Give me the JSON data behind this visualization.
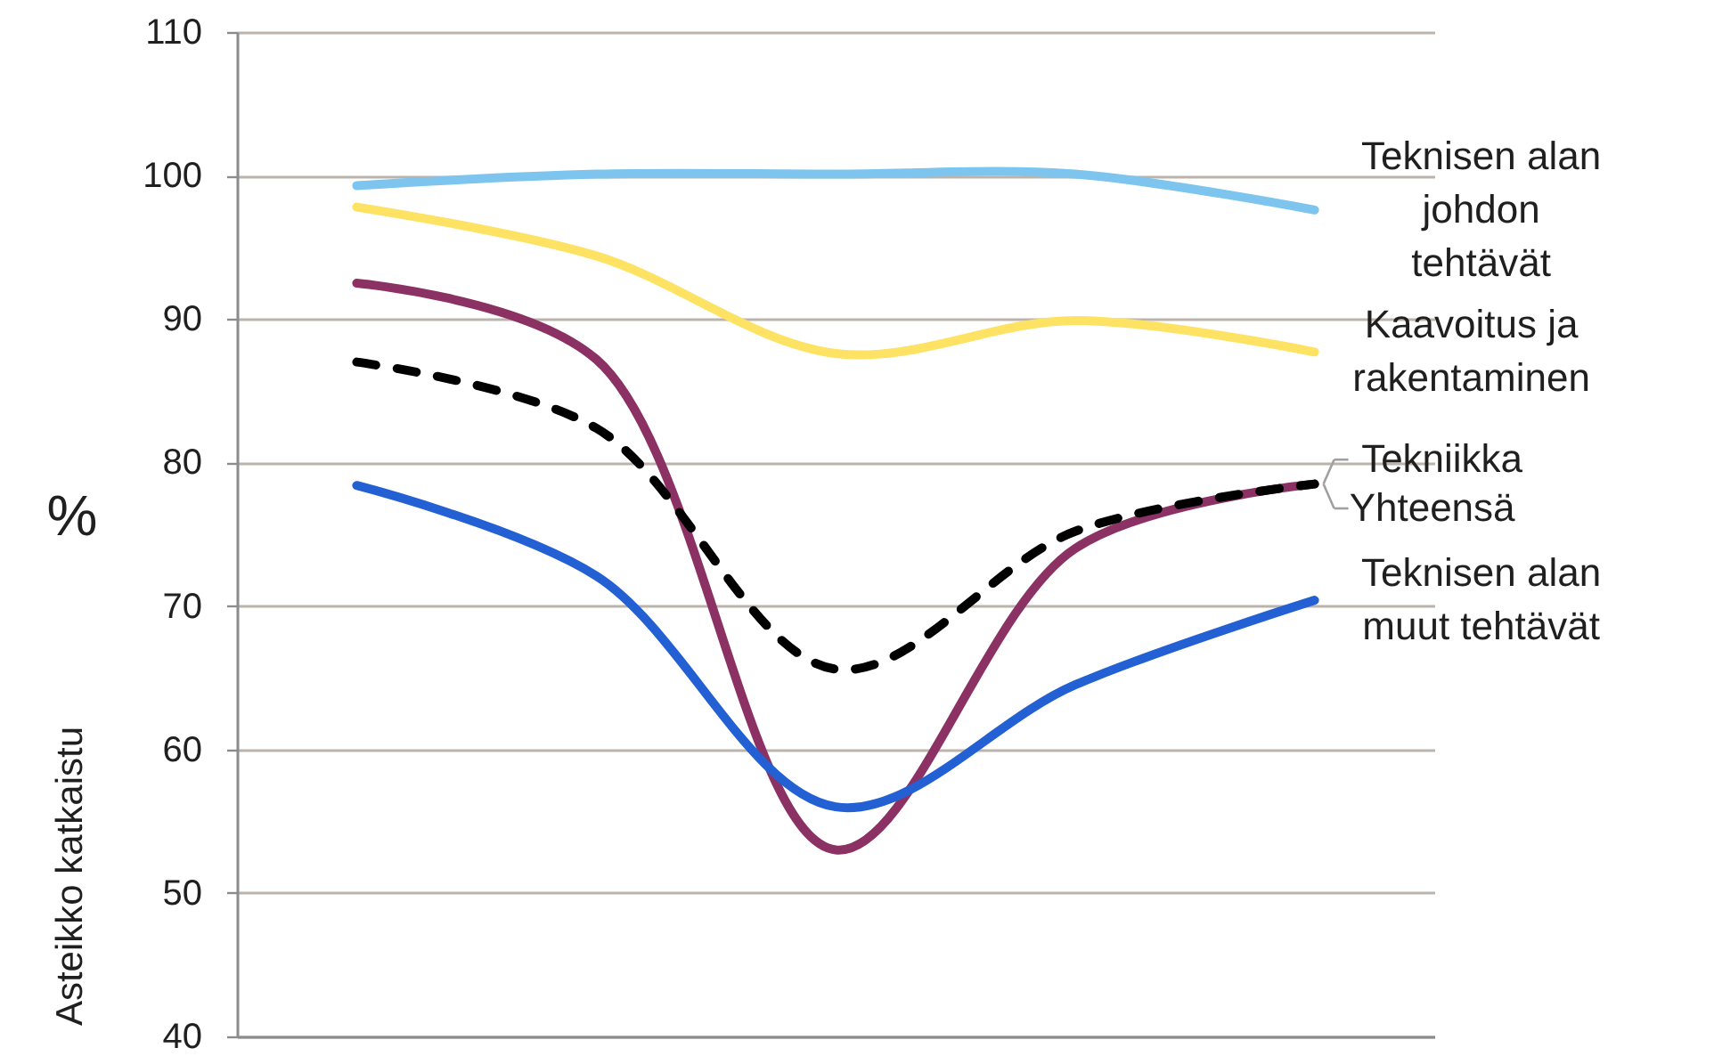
{
  "chart_data": {
    "type": "line",
    "ylabel": "%",
    "annotations": [
      "Asteikko katkaistu"
    ],
    "categories": [
      null,
      null,
      null,
      null,
      null
    ],
    "series": [
      {
        "name": "Teknisen alan johdon tehtävät",
        "color": "#7dc5ee",
        "values": [
          99.3,
          100.1,
          100.1,
          100.1,
          97.6
        ]
      },
      {
        "name": "Kaavoitus ja rakentaminen",
        "color": "#fde263",
        "values": [
          97.8,
          94.4,
          87.6,
          89.9,
          87.7
        ]
      },
      {
        "name": "Tekniikka",
        "color": "#8b3163",
        "values": [
          92.5,
          87.2,
          53.0,
          74.0,
          78.5
        ]
      },
      {
        "name": "Yhteensä",
        "color": "#000000",
        "line_style": "dashed",
        "values": [
          87.0,
          82.4,
          65.6,
          75.2,
          78.5
        ]
      },
      {
        "name": "Teknisen alan muut tehtävät",
        "color": "#2360d3",
        "values": [
          78.4,
          72.1,
          56.0,
          64.5,
          70.4
        ]
      }
    ],
    "ylim": [
      40,
      110
    ],
    "yticks": [
      40,
      50,
      60,
      70,
      80,
      90,
      100,
      110
    ],
    "grid": "y",
    "tick_labels": "y"
  }
}
